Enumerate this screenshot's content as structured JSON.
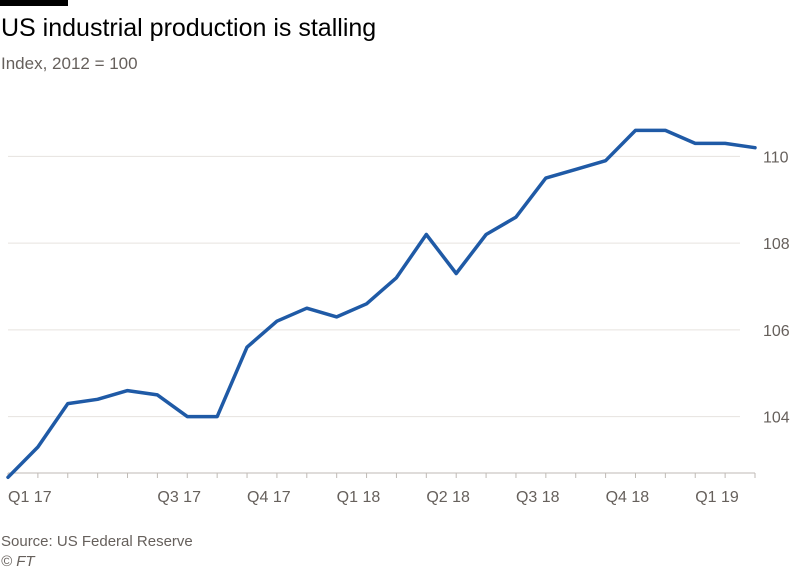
{
  "chart_data": {
    "type": "line",
    "title": "US industrial production is stalling",
    "subtitle": "Index, 2012 = 100",
    "xlabel": "",
    "ylabel": "",
    "x_tick_labels": [
      "Q1 17",
      "Q3 17",
      "Q4 17",
      "Q1 18",
      "Q2 18",
      "Q3 18",
      "Q4 18",
      "Q1 19"
    ],
    "y_ticks": [
      104,
      106,
      108,
      110
    ],
    "ylim": [
      102.7,
      111.3
    ],
    "grid": true,
    "y_axis_side": "right",
    "series": [
      {
        "color": "#1f5aa6",
        "values": [
          102.6,
          103.3,
          104.3,
          104.4,
          104.6,
          104.5,
          104.0,
          104.0,
          105.6,
          106.2,
          106.5,
          106.3,
          106.6,
          107.2,
          108.2,
          107.3,
          108.2,
          108.6,
          109.5,
          109.7,
          109.9,
          110.6,
          110.6,
          110.3,
          110.3,
          110.2
        ]
      }
    ]
  },
  "footer": {
    "source": "Source: US Federal Reserve",
    "credit": "© FT"
  }
}
